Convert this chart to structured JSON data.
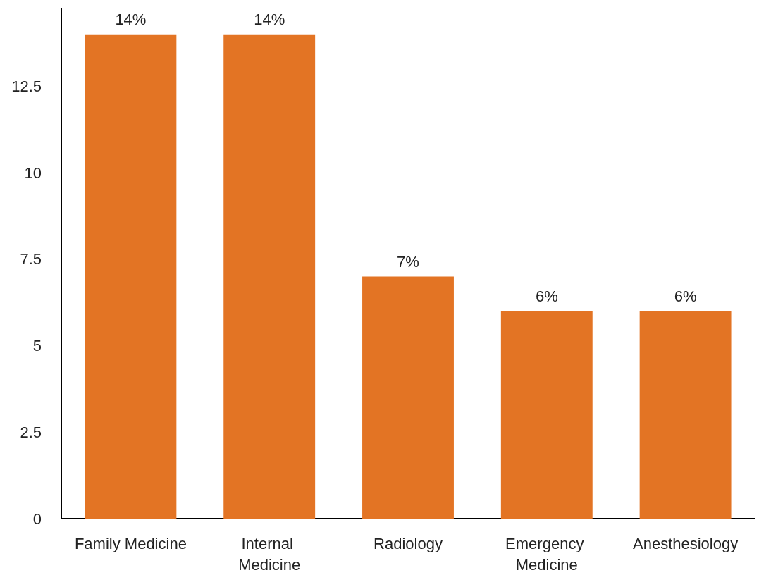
{
  "chart_data": {
    "type": "bar",
    "categories": [
      "Family Medicine",
      "Internal Medicine",
      "Radiology",
      "Emergency Medicine",
      "Anesthesiology"
    ],
    "values": [
      14,
      14,
      7,
      6,
      6
    ],
    "value_labels": [
      "14%",
      "14%",
      "7%",
      "6%",
      "6%"
    ],
    "color": "#e37424",
    "ylim": [
      0,
      14.75
    ],
    "yticks": [
      0,
      2.5,
      5,
      7.5,
      10,
      12.5
    ]
  }
}
